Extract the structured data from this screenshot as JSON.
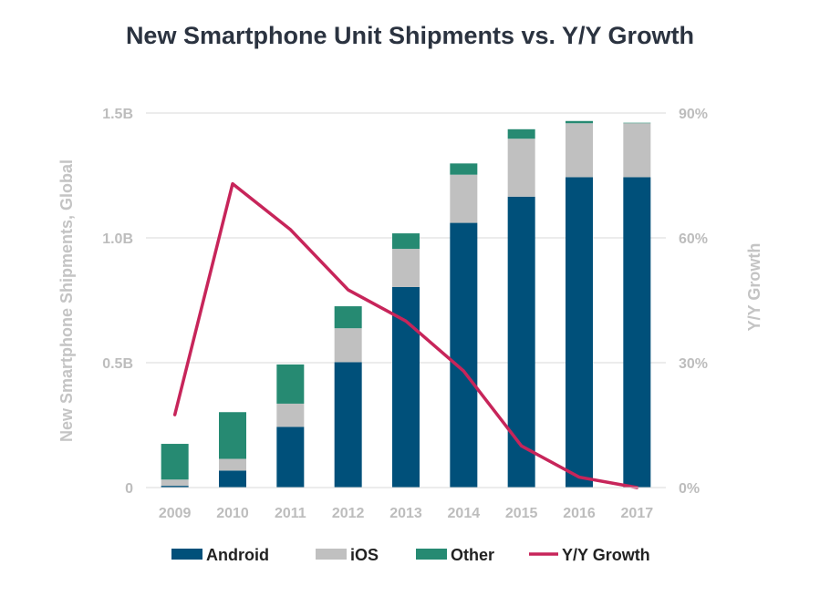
{
  "chart_data": {
    "type": "bar",
    "title": "New Smartphone Unit Shipments vs. Y/Y Growth",
    "ylabel": "New Smartphone Shipments, Global",
    "y2label": "Y/Y Growth",
    "ylim": [
      0,
      1.5
    ],
    "y2lim": [
      0,
      90
    ],
    "yticks": [
      "0",
      "0.5B",
      "1.0B",
      "1.5B"
    ],
    "y2ticks": [
      "0%",
      "30%",
      "60%",
      "90%"
    ],
    "categories": [
      "2009",
      "2010",
      "2011",
      "2012",
      "2013",
      "2014",
      "2015",
      "2016",
      "2017"
    ],
    "stacked": true,
    "series": [
      {
        "name": "Android",
        "type": "bar",
        "color": "#00507a",
        "values": [
          0.007,
          0.068,
          0.243,
          0.502,
          0.803,
          1.06,
          1.165,
          1.243,
          1.243
        ]
      },
      {
        "name": "iOS",
        "type": "bar",
        "color": "#c0c0c0",
        "values": [
          0.025,
          0.047,
          0.093,
          0.136,
          0.153,
          0.193,
          0.232,
          0.216,
          0.216
        ]
      },
      {
        "name": "Other",
        "type": "bar",
        "color": "#268a72",
        "values": [
          0.143,
          0.187,
          0.157,
          0.088,
          0.062,
          0.045,
          0.038,
          0.009,
          0.002
        ]
      },
      {
        "name": "Y/Y Growth",
        "type": "line",
        "axis": "right",
        "color": "#c7255a",
        "values": [
          17.5,
          73,
          62,
          47.5,
          40,
          28,
          10,
          2.5,
          0
        ]
      }
    ],
    "legend": "bottom"
  }
}
